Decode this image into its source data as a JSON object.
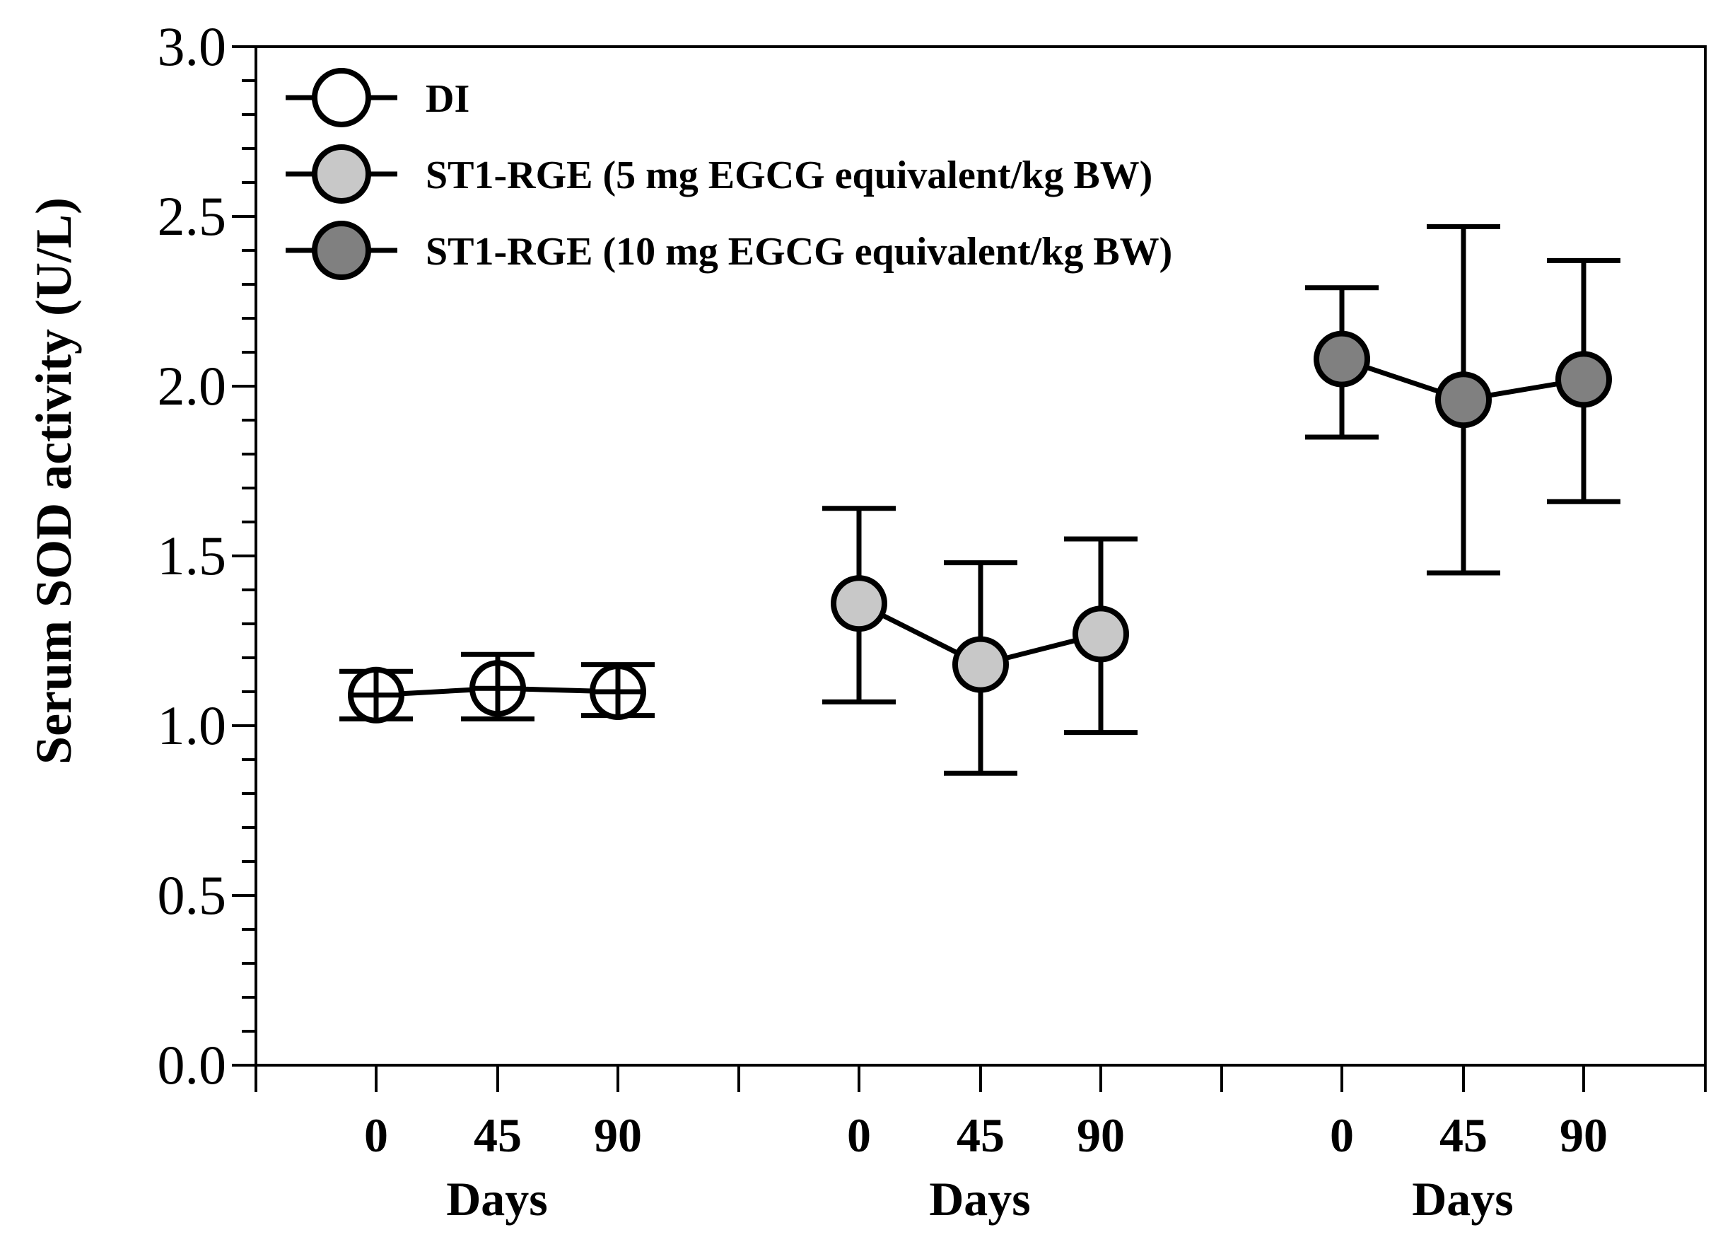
{
  "chart_data": {
    "type": "line",
    "title": "",
    "ylabel": "Serum SOD activity (U/L)",
    "ylim": [
      0.0,
      3.0
    ],
    "y_ticks": [
      "0.0",
      "0.5",
      "1.0",
      "1.5",
      "2.0",
      "2.5",
      "3.0"
    ],
    "y_minor_step": 0.1,
    "grid": false,
    "legend_position": "top-left",
    "groups": [
      {
        "xlabel": "Days",
        "ticks": [
          "0",
          "45",
          "90"
        ]
      },
      {
        "xlabel": "Days",
        "ticks": [
          "0",
          "45",
          "90"
        ]
      },
      {
        "xlabel": "Days",
        "ticks": [
          "0",
          "45",
          "90"
        ]
      }
    ],
    "series": [
      {
        "name": "DI",
        "fill": "#ffffff",
        "group": 0,
        "days": [
          0,
          45,
          90
        ],
        "values": [
          1.09,
          1.11,
          1.1
        ],
        "error_lower": [
          1.02,
          1.02,
          1.03
        ],
        "error_upper": [
          1.16,
          1.21,
          1.18
        ]
      },
      {
        "name": "ST1-RGE (5 mg EGCG equivalent/kg BW)",
        "fill": "#c8c8c8",
        "group": 1,
        "days": [
          0,
          45,
          90
        ],
        "values": [
          1.36,
          1.18,
          1.27
        ],
        "error_lower": [
          1.07,
          0.86,
          0.98
        ],
        "error_upper": [
          1.64,
          1.48,
          1.55
        ]
      },
      {
        "name": "ST1-RGE (10 mg EGCG equivalent/kg BW)",
        "fill": "#808080",
        "group": 2,
        "days": [
          0,
          45,
          90
        ],
        "values": [
          2.08,
          1.96,
          2.02
        ],
        "error_lower": [
          1.85,
          1.45,
          1.66
        ],
        "error_upper": [
          2.29,
          2.47,
          2.37
        ]
      }
    ]
  }
}
